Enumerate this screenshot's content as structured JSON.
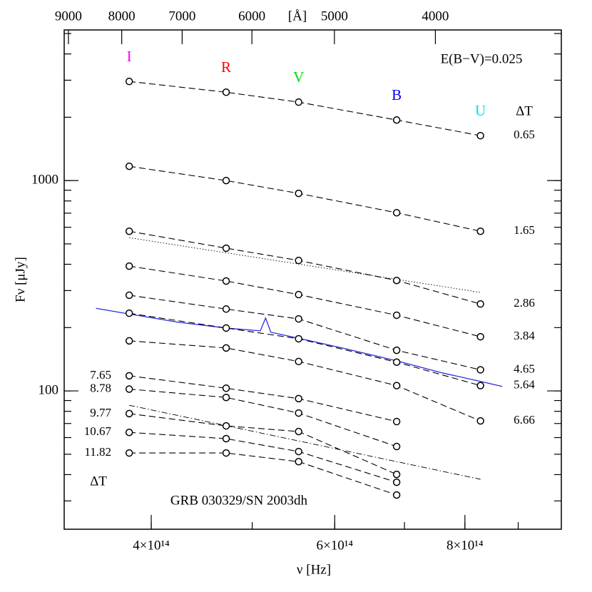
{
  "chart_data": {
    "type": "line",
    "xlabel": "ν [Hz]",
    "ylabel": "Fν [μJy]",
    "x2label": "[Å]",
    "xscale": "log",
    "yscale": "log",
    "xlim": [
      330000000000000.0,
      990000000000000.0
    ],
    "ylim": [
      22,
      5200
    ],
    "xticks": [
      {
        "value": 400000000000000.0,
        "label": "4×10¹⁴"
      },
      {
        "value": 600000000000000.0,
        "label": "6×10¹⁴"
      },
      {
        "value": 800000000000000.0,
        "label": "8×10¹⁴"
      }
    ],
    "yticks": [
      100,
      1000
    ],
    "x2ticks": [
      9000,
      8000,
      7000,
      6000,
      5000,
      4000
    ],
    "minor_ticks": true,
    "x": [
      381000000000000.0,
      472000000000000.0,
      554000000000000.0,
      688000000000000.0,
      828000000000000.0
    ],
    "filters": [
      "I",
      "R",
      "V",
      "B",
      "U"
    ],
    "filter_colors": [
      "#ff00ff",
      "#ff0000",
      "#00dd00",
      "#0000ff",
      "#00e5e5"
    ],
    "series": [
      {
        "name": "0.65",
        "label_side": "right",
        "values": [
          2960,
          2630,
          2360,
          1940,
          1635
        ]
      },
      {
        "name": "1.65",
        "label_side": "right",
        "values": [
          1169,
          1000,
          869,
          703,
          574
        ]
      },
      {
        "name": "2.86",
        "label_side": "right",
        "values": [
          574,
          477,
          417,
          335,
          259
        ]
      },
      {
        "name": "3.84",
        "label_side": "right",
        "values": [
          392,
          333,
          287,
          229,
          181
        ]
      },
      {
        "name": "4.65",
        "label_side": "right",
        "values": [
          285,
          245,
          220,
          156,
          126
        ]
      },
      {
        "name": "5.64",
        "label_side": "right",
        "values": [
          234,
          199,
          177,
          137,
          106
        ]
      },
      {
        "name": "6.66",
        "label_side": "right",
        "values": [
          173,
          160,
          138,
          106,
          72
        ]
      },
      {
        "name": "7.65",
        "label_side": "left",
        "values": [
          118,
          103,
          91.9,
          71.5,
          null
        ]
      },
      {
        "name": "8.78",
        "label_side": "left",
        "values": [
          102,
          93.1,
          78.5,
          54.4,
          null
        ]
      },
      {
        "name": "9.77",
        "label_side": "left",
        "values": [
          78,
          68.2,
          64.1,
          40.1,
          null
        ]
      },
      {
        "name": "10.67",
        "label_side": "left",
        "values": [
          63.5,
          59.3,
          51.5,
          36.8,
          null
        ]
      },
      {
        "name": "11.82",
        "label_side": "left",
        "values": [
          50.7,
          50.7,
          46.1,
          32.0,
          null
        ]
      }
    ],
    "fits": [
      {
        "style": "dotted",
        "x": [
          381000000000000.0,
          828000000000000.0
        ],
        "values": [
          535,
          294
        ]
      },
      {
        "style": "dashdot",
        "x": [
          381000000000000.0,
          828000000000000.0
        ],
        "values": [
          85.5,
          38.0
        ]
      }
    ],
    "spectrum": {
      "color": "#2a2ae0",
      "x": [
        354000000000000.0,
        381000000000000.0,
        425000000000000.0,
        472000000000000.0,
        509000000000000.0,
        515000000000000.0,
        521000000000000.0,
        554000000000000.0,
        610000000000000.0,
        688000000000000.0,
        760000000000000.0,
        828000000000000.0,
        869000000000000.0
      ],
      "values": [
        247,
        232,
        212,
        199,
        193,
        222,
        190,
        178,
        160,
        139,
        122,
        111,
        105
      ]
    },
    "delta_label": "ΔT",
    "annotations": [
      "E(B−V)=0.025",
      "GRB 030329/SN 2003dh"
    ]
  }
}
